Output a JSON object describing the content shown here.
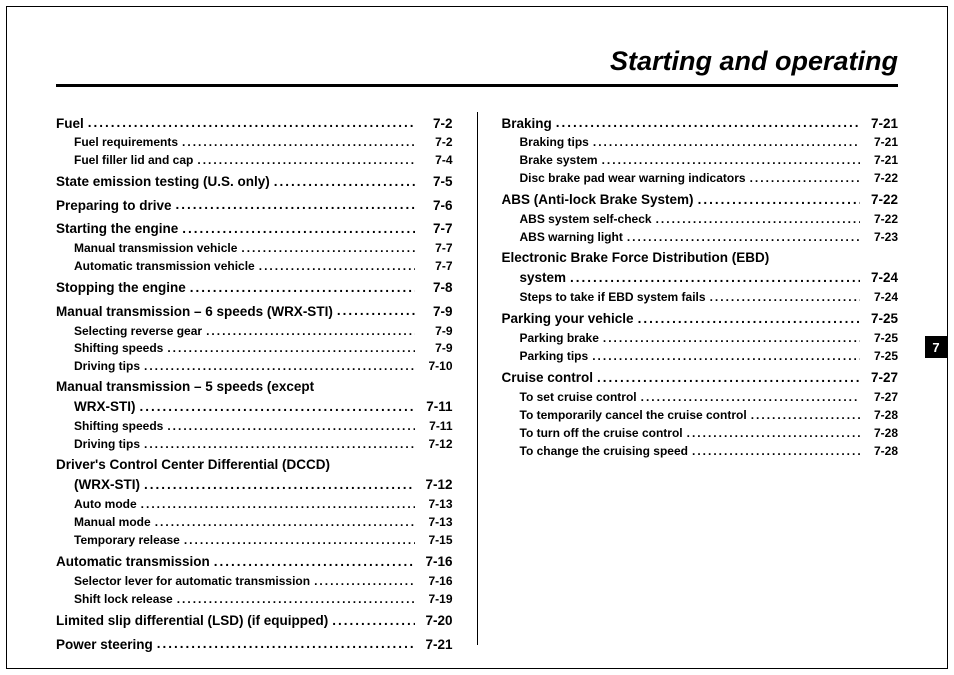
{
  "title": "Starting and operating",
  "chapter_tab": "7",
  "columns": {
    "left": [
      {
        "level": "main",
        "label": "Fuel",
        "page": "7-2"
      },
      {
        "level": "sub",
        "label": "Fuel requirements",
        "page": "7-2"
      },
      {
        "level": "sub",
        "label": "Fuel filler lid and cap",
        "page": "7-4"
      },
      {
        "level": "main",
        "label": "State emission testing (U.S. only)",
        "page": "7-5"
      },
      {
        "level": "main",
        "label": "Preparing to drive",
        "page": "7-6"
      },
      {
        "level": "main",
        "label": "Starting the engine",
        "page": "7-7"
      },
      {
        "level": "sub",
        "label": "Manual transmission vehicle",
        "page": "7-7"
      },
      {
        "level": "sub",
        "label": "Automatic transmission vehicle",
        "page": "7-7"
      },
      {
        "level": "main",
        "label": "Stopping the engine",
        "page": "7-8"
      },
      {
        "level": "main",
        "label": "Manual transmission – 6 speeds (WRX-STI)",
        "page": "7-9"
      },
      {
        "level": "sub",
        "label": "Selecting reverse gear",
        "page": "7-9"
      },
      {
        "level": "sub",
        "label": "Shifting speeds",
        "page": "7-9"
      },
      {
        "level": "sub",
        "label": "Driving tips",
        "page": "7-10"
      },
      {
        "level": "cont",
        "label": "Manual transmission – 5 speeds (except"
      },
      {
        "level": "main",
        "label": "WRX-STI)",
        "page": "7-11",
        "indent": true
      },
      {
        "level": "sub",
        "label": "Shifting speeds",
        "page": "7-11"
      },
      {
        "level": "sub",
        "label": "Driving tips",
        "page": "7-12"
      },
      {
        "level": "cont",
        "label": "Driver's Control Center Differential (DCCD)"
      },
      {
        "level": "main",
        "label": "(WRX-STI)",
        "page": "7-12",
        "indent": true
      },
      {
        "level": "sub",
        "label": "Auto mode",
        "page": "7-13"
      },
      {
        "level": "sub",
        "label": "Manual mode",
        "page": "7-13"
      },
      {
        "level": "sub",
        "label": "Temporary release",
        "page": "7-15"
      },
      {
        "level": "main",
        "label": "Automatic transmission",
        "page": "7-16"
      },
      {
        "level": "sub",
        "label": "Selector lever for automatic transmission",
        "page": "7-16"
      },
      {
        "level": "sub",
        "label": "Shift lock release",
        "page": "7-19"
      },
      {
        "level": "main",
        "label": "Limited slip differential (LSD) (if equipped)",
        "page": "7-20"
      },
      {
        "level": "main",
        "label": "Power steering",
        "page": "7-21"
      }
    ],
    "right": [
      {
        "level": "main",
        "label": "Braking",
        "page": "7-21"
      },
      {
        "level": "sub",
        "label": "Braking tips",
        "page": "7-21"
      },
      {
        "level": "sub",
        "label": "Brake system",
        "page": "7-21"
      },
      {
        "level": "sub",
        "label": "Disc brake pad wear warning indicators",
        "page": "7-22"
      },
      {
        "level": "main",
        "label": "ABS (Anti-lock Brake System)",
        "page": "7-22"
      },
      {
        "level": "sub",
        "label": "ABS system self-check",
        "page": "7-22"
      },
      {
        "level": "sub",
        "label": "ABS warning light",
        "page": "7-23"
      },
      {
        "level": "cont",
        "label": "Electronic Brake Force Distribution (EBD)"
      },
      {
        "level": "main",
        "label": "system",
        "page": "7-24",
        "indent": true
      },
      {
        "level": "sub",
        "label": "Steps to take if EBD system fails",
        "page": "7-24"
      },
      {
        "level": "main",
        "label": "Parking your vehicle",
        "page": "7-25"
      },
      {
        "level": "sub",
        "label": "Parking brake",
        "page": "7-25"
      },
      {
        "level": "sub",
        "label": "Parking tips",
        "page": "7-25"
      },
      {
        "level": "main",
        "label": "Cruise control",
        "page": "7-27"
      },
      {
        "level": "sub",
        "label": "To set cruise control",
        "page": "7-27"
      },
      {
        "level": "sub",
        "label": "To temporarily cancel the cruise control",
        "page": "7-28"
      },
      {
        "level": "sub",
        "label": "To turn off the cruise control",
        "page": "7-28"
      },
      {
        "level": "sub",
        "label": "To change the cruising speed",
        "page": "7-28"
      }
    ]
  }
}
